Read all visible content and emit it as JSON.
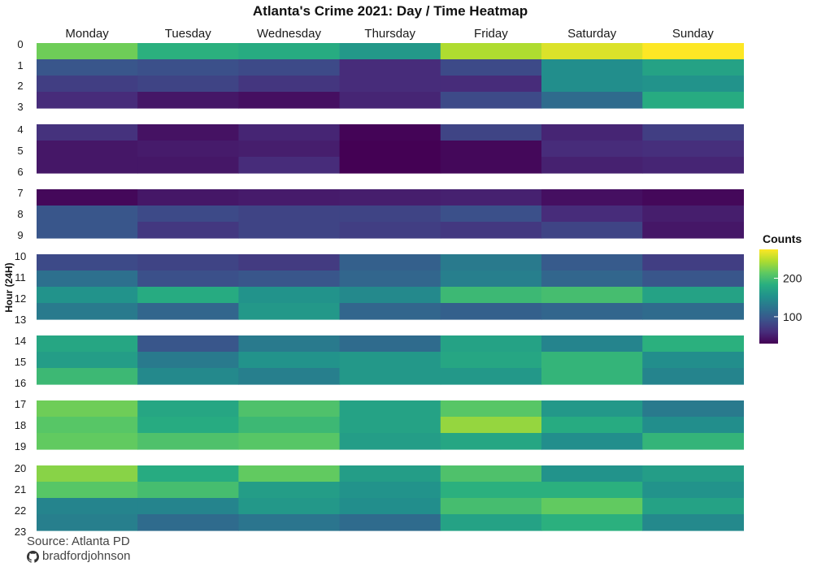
{
  "chart_data": {
    "type": "heatmap",
    "title": "Atlanta's Crime 2021: Day / Time Heatmap",
    "xlabel": "",
    "ylabel": "Hour (24H)",
    "x_categories": [
      "Monday",
      "Tuesday",
      "Wednesday",
      "Thursday",
      "Friday",
      "Saturday",
      "Sunday"
    ],
    "y_categories": [
      "0",
      "1",
      "2",
      "3",
      "4",
      "5",
      "6",
      "7",
      "8",
      "9",
      "10",
      "11",
      "12",
      "13",
      "14",
      "15",
      "16",
      "17",
      "18",
      "19",
      "20",
      "21",
      "22",
      "23"
    ],
    "values": [
      [
        220,
        185,
        180,
        160,
        245,
        262,
        275
      ],
      [
        95,
        90,
        85,
        60,
        85,
        150,
        170
      ],
      [
        75,
        80,
        68,
        60,
        60,
        150,
        155
      ],
      [
        60,
        45,
        40,
        55,
        85,
        115,
        180
      ],
      [
        65,
        42,
        55,
        32,
        80,
        55,
        75
      ],
      [
        45,
        48,
        50,
        30,
        35,
        60,
        62
      ],
      [
        45,
        45,
        60,
        30,
        35,
        52,
        55
      ],
      [
        35,
        45,
        48,
        50,
        52,
        40,
        35
      ],
      [
        95,
        85,
        80,
        80,
        90,
        60,
        50
      ],
      [
        95,
        70,
        80,
        75,
        70,
        80,
        45
      ],
      [
        85,
        80,
        72,
        105,
        130,
        100,
        75
      ],
      [
        120,
        90,
        95,
        110,
        135,
        110,
        95
      ],
      [
        155,
        180,
        155,
        145,
        195,
        200,
        170
      ],
      [
        130,
        110,
        160,
        110,
        105,
        110,
        115
      ],
      [
        175,
        95,
        130,
        115,
        170,
        140,
        185
      ],
      [
        165,
        130,
        155,
        160,
        175,
        190,
        150
      ],
      [
        195,
        145,
        135,
        160,
        160,
        190,
        140
      ],
      [
        220,
        175,
        205,
        170,
        210,
        160,
        130
      ],
      [
        210,
        180,
        195,
        170,
        235,
        180,
        150
      ],
      [
        215,
        205,
        210,
        165,
        175,
        150,
        190
      ],
      [
        230,
        180,
        215,
        165,
        205,
        155,
        165
      ],
      [
        210,
        200,
        165,
        155,
        185,
        185,
        155
      ],
      [
        140,
        140,
        160,
        150,
        200,
        215,
        170
      ],
      [
        135,
        115,
        125,
        115,
        170,
        185,
        145
      ]
    ],
    "colorbar": {
      "title": "Counts",
      "ticks": [
        100,
        200
      ],
      "range": [
        30,
        275
      ],
      "colorscale": "viridis"
    },
    "legend_position": "right",
    "grid": false
  },
  "captions": {
    "source": "Source: Atlanta PD",
    "author": "bradfordjohnson",
    "author_icon": "github-icon"
  }
}
